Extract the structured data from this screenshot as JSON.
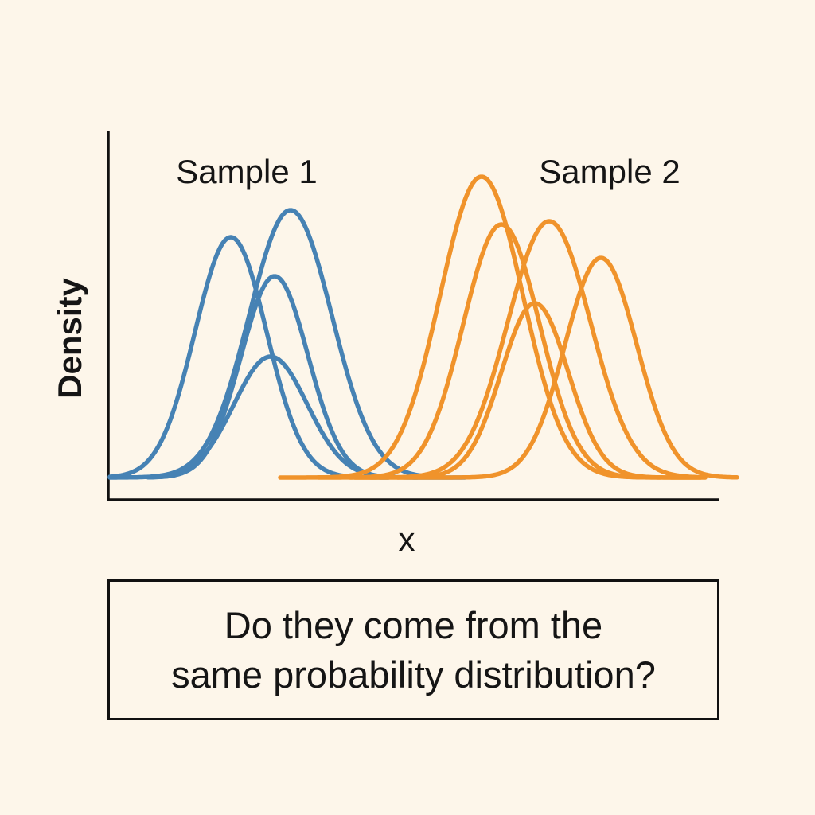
{
  "figure": {
    "y_axis_label": "Density",
    "x_axis_label": "x",
    "question": {
      "line1": "Do they come from the",
      "line2": "same probability distribution?"
    }
  },
  "chart_data": {
    "type": "line",
    "xlabel": "x",
    "ylabel": "Density",
    "grid": false,
    "series": [
      {
        "name": "Sample 1",
        "color": "#4682B4",
        "curves": [
          {
            "mean": 290,
            "peak": 302,
            "sd": 45
          },
          {
            "mean": 365,
            "peak": 336,
            "sd": 52
          },
          {
            "mean": 345,
            "peak": 253,
            "sd": 42
          },
          {
            "mean": 340,
            "peak": 152,
            "sd": 46
          }
        ]
      },
      {
        "name": "Sample 2",
        "color": "#F0932B",
        "curves": [
          {
            "mean": 605,
            "peak": 378,
            "sd": 52
          },
          {
            "mean": 630,
            "peak": 318,
            "sd": 48
          },
          {
            "mean": 690,
            "peak": 322,
            "sd": 52
          },
          {
            "mean": 755,
            "peak": 276,
            "sd": 45
          },
          {
            "mean": 672,
            "peak": 219,
            "sd": 42
          }
        ]
      }
    ]
  }
}
